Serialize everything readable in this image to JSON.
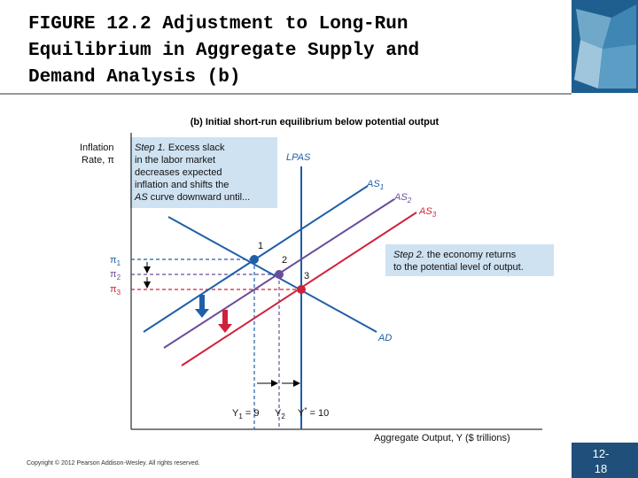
{
  "header": {
    "title_lines": [
      "FIGURE 12.2  Adjustment to Long-Run",
      "Equilibrium in Aggregate Supply and",
      "Demand Analysis (b)"
    ]
  },
  "figure": {
    "title": "(b) Initial short-run equilibrium below potential output",
    "y_axis_label": [
      "Inflation",
      "Rate, π"
    ],
    "x_axis_label": "Aggregate Output, Y ($ trillions)",
    "step1": {
      "lead": "Step 1.",
      "first": " Excess slack",
      "lines": [
        "in the labor market",
        "decreases expected",
        "inflation and shifts the"
      ],
      "last_lead": "AS",
      "last": " curve downward until..."
    },
    "step2": {
      "lead": "Step 2.",
      "first": " the economy returns",
      "second": "to the potential level of output."
    },
    "curves": {
      "lpas": "LPAS",
      "as1": {
        "base": "AS",
        "sub": "1"
      },
      "as2": {
        "base": "AS",
        "sub": "2"
      },
      "as3": {
        "base": "AS",
        "sub": "3"
      },
      "ad": "AD"
    },
    "points": [
      "1",
      "2",
      "3"
    ],
    "y_ticks": [
      {
        "base": "π",
        "sub": "1"
      },
      {
        "base": "π",
        "sub": "2"
      },
      {
        "base": "π",
        "sub": "3"
      }
    ],
    "x_ticks": [
      {
        "base": "Y",
        "sub": "1",
        "rest": " = 9"
      },
      {
        "base": "Y",
        "sub": "2"
      },
      {
        "base": "Y",
        "sup": "*",
        "rest": " = 10"
      }
    ]
  },
  "footer": {
    "copyright": "Copyright © 2012 Pearson Addison-Wesley. All rights reserved.",
    "slide_number": [
      "12-",
      "18"
    ]
  }
}
